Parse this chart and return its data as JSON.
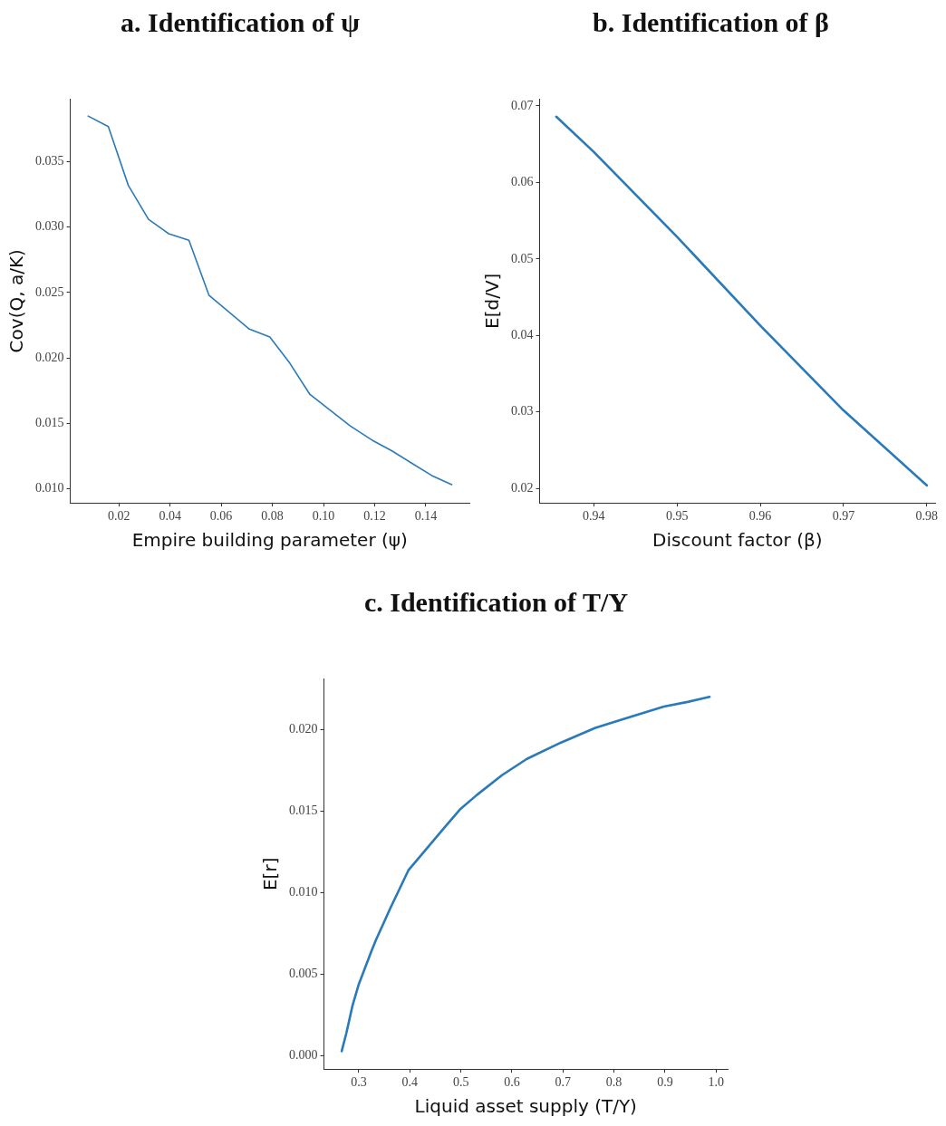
{
  "chart_data": [
    {
      "type": "line",
      "title": "a. Identification of ψ",
      "xlabel": "Empire building parameter (ψ)",
      "ylabel": "Cov(Q, a/K)",
      "grid": false,
      "legend": false,
      "marker": "none",
      "line_style": "solid",
      "xlim": [
        0.001,
        0.157
      ],
      "ylim": [
        0.0089,
        0.0398
      ],
      "xticks": [
        0.02,
        0.04,
        0.06,
        0.08,
        {
          "value": 0.1,
          "label": "0.10"
        },
        0.12,
        0.14
      ],
      "yticks": [
        {
          "value": 0.01,
          "label": "0.010"
        },
        0.015,
        {
          "value": 0.02,
          "label": "0.020"
        },
        0.025,
        {
          "value": 0.03,
          "label": "0.030"
        },
        0.035
      ],
      "series": [
        {
          "color": "#2a7ab9",
          "x": [
            0.008,
            0.0159,
            0.0237,
            0.0316,
            0.0395,
            0.0474,
            0.0552,
            0.071,
            0.079,
            0.0868,
            0.0947,
            0.1104,
            0.119,
            0.1266,
            0.134,
            0.1423,
            0.1501
          ],
          "values": [
            0.0385,
            0.0377,
            0.0332,
            0.0306,
            0.0295,
            0.029,
            0.0248,
            0.0222,
            0.0216,
            0.0196,
            0.0172,
            0.0148,
            0.0137,
            0.0129,
            0.012,
            0.011,
            0.0103
          ]
        }
      ]
    },
    {
      "type": "line",
      "title": "b. Identification of β",
      "xlabel": "Discount factor (β)",
      "ylabel": "E[d/V]",
      "grid": false,
      "legend": false,
      "marker": "none",
      "line_style": "solid",
      "xlim": [
        0.9335,
        0.981
      ],
      "ylim": [
        0.0181,
        0.0709
      ],
      "xticks": [
        0.94,
        0.95,
        0.96,
        0.97,
        0.98
      ],
      "yticks": [
        0.02,
        0.03,
        0.04,
        0.05,
        0.06,
        0.07
      ],
      "series": [
        {
          "color": "#2a7ab9",
          "x": [
            0.9355,
            0.94,
            0.95,
            0.96,
            0.97,
            0.98
          ],
          "values": [
            0.0686,
            0.064,
            0.0529,
            0.0413,
            0.0302,
            0.0204
          ]
        }
      ]
    },
    {
      "type": "line",
      "title": "c. Identification of T/Y",
      "xlabel": "Liquid asset supply (T/Y)",
      "ylabel": "E[r]",
      "grid": false,
      "legend": false,
      "marker": "none",
      "line_style": "solid",
      "xlim": [
        0.2317,
        1.0226
      ],
      "ylim": [
        -0.0008,
        0.0231
      ],
      "xticks": [
        0.3,
        0.4,
        0.5,
        0.6,
        0.7,
        0.8,
        0.9,
        {
          "value": 1,
          "label": "1.0"
        }
      ],
      "yticks": [
        {
          "value": 0,
          "label": "0.000"
        },
        0.005,
        {
          "value": 0.01,
          "label": "0.010"
        },
        0.015,
        {
          "value": 0.02,
          "label": "0.020"
        }
      ],
      "series": [
        {
          "color": "#2a7ab9",
          "x": [
            0.2665,
            0.2756,
            0.2878,
            0.3,
            0.3244,
            0.3335,
            0.361,
            0.3976,
            0.422,
            0.4463,
            0.4707,
            0.4982,
            0.5317,
            0.5805,
            0.6293,
            0.6963,
            0.7634,
            0.8244,
            0.8976,
            0.9463,
            0.9872
          ],
          "values": [
            0.0003,
            0.0014,
            0.0031,
            0.0044,
            0.0064,
            0.0071,
            0.009,
            0.0114,
            0.0123,
            0.0132,
            0.0141,
            0.0151,
            0.016,
            0.0172,
            0.0182,
            0.0192,
            0.0201,
            0.0207,
            0.0214,
            0.0217,
            0.022
          ]
        }
      ]
    }
  ]
}
